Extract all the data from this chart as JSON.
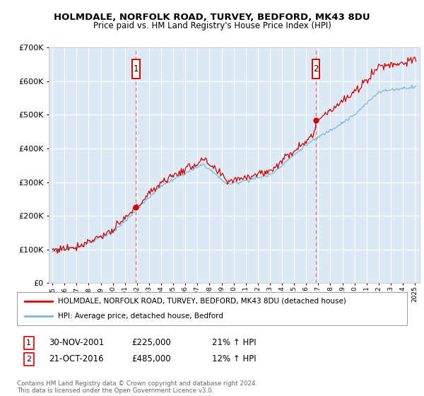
{
  "title": "HOLMDALE, NORFOLK ROAD, TURVEY, BEDFORD, MK43 8DU",
  "subtitle": "Price paid vs. HM Land Registry's House Price Index (HPI)",
  "bg_color": "#dce9f5",
  "fig_bg_color": "#ffffff",
  "grid_color": "#ffffff",
  "sale1_date_num": 2001.917,
  "sale1_price": 225000,
  "sale2_date_num": 2016.792,
  "sale2_price": 485000,
  "legend_line1": "HOLMDALE, NORFOLK ROAD, TURVEY, BEDFORD, MK43 8DU (detached house)",
  "legend_line2": "HPI: Average price, detached house, Bedford",
  "table_row1": [
    "1",
    "30-NOV-2001",
    "£225,000",
    "21% ↑ HPI"
  ],
  "table_row2": [
    "2",
    "21-OCT-2016",
    "£485,000",
    "12% ↑ HPI"
  ],
  "footnote": "Contains HM Land Registry data © Crown copyright and database right 2024.\nThis data is licensed under the Open Government Licence v3.0.",
  "hpi_color": "#7ab8d9",
  "price_color": "#cc0000",
  "vline_color": "#e87070",
  "marker_box_color": "#cc0000",
  "ylim_max": 700000,
  "xlim_start": 1994.7,
  "xlim_end": 2025.4
}
